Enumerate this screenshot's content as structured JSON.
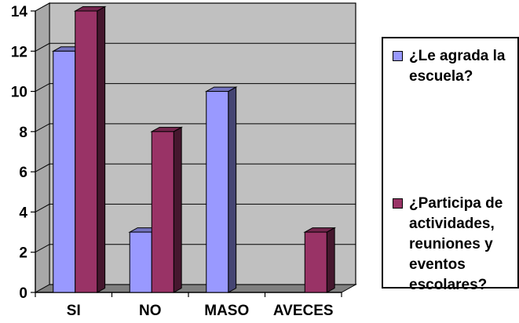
{
  "chart_data": {
    "type": "bar",
    "categories": [
      "SI",
      "NO",
      "MASO",
      "AVECES"
    ],
    "series": [
      {
        "name": "¿Le agrada la escuela?",
        "values": [
          12,
          3,
          10,
          0
        ],
        "color": "#9999FF"
      },
      {
        "name": "¿Participa de actividades, reuniones y eventos escolares?",
        "values": [
          14,
          8,
          0,
          3
        ],
        "color": "#993366"
      }
    ],
    "ylim": [
      0,
      14
    ],
    "yticks": [
      "0",
      "2",
      "4",
      "6",
      "8",
      "10",
      "12",
      "14"
    ],
    "grid": true,
    "plot_background": "#C0C0C0",
    "legend_position": "right",
    "title": "",
    "xlabel": "",
    "ylabel": ""
  },
  "legend": {
    "items": [
      {
        "label": "¿Le agrada la\nescuela?",
        "color": "#9999FF"
      },
      {
        "label": "¿Participa de\nactividades,\nreuniones y\neventos\nescolares?",
        "color": "#993366"
      }
    ]
  }
}
